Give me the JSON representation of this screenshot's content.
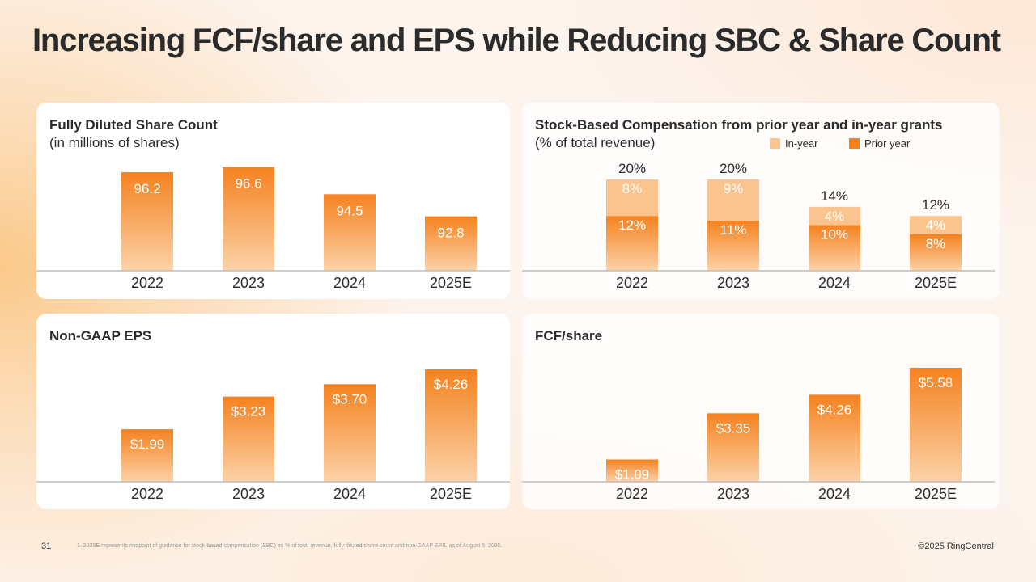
{
  "slide": {
    "title": "Increasing FCF/share and EPS while Reducing SBC & Share Count",
    "page_number": "31",
    "footnote": "1.   2025E represents midpoint of guidance for stock-based compensation (SBC) as % of total revenue, fully diluted share count and non-GAAP EPS, as of August 5, 2025.",
    "copyright": "©2025 RingCentral"
  },
  "colors": {
    "bar_top": "#f5821f",
    "bar_bottom": "#fcd2a8",
    "light_segment": "#fbc48f",
    "axis": "#bdbdbd",
    "text": "#2b2b2b"
  },
  "chart_data": [
    {
      "id": "share-count",
      "type": "bar",
      "title": "Fully Diluted Share Count",
      "subtitle": "(in millions of shares)",
      "categories": [
        "2022",
        "2023",
        "2024",
        "2025E"
      ],
      "values": [
        96.2,
        96.6,
        94.5,
        92.8
      ],
      "labels": [
        "96.2",
        "96.6",
        "94.5",
        "92.8"
      ],
      "ylim": [
        88.6,
        97.2
      ]
    },
    {
      "id": "sbc",
      "type": "bar",
      "stacked": true,
      "title": "Stock-Based Compensation from prior year and in-year grants",
      "subtitle": "(% of total revenue)",
      "categories": [
        "2022",
        "2023",
        "2024",
        "2025E"
      ],
      "series": [
        {
          "name": "Prior year",
          "values": [
            12,
            11,
            10,
            8
          ],
          "labels": [
            "12%",
            "11%",
            "10%",
            "8%"
          ]
        },
        {
          "name": "In-year",
          "values": [
            8,
            9,
            4,
            4
          ],
          "labels": [
            "8%",
            "9%",
            "4%",
            "4%"
          ]
        }
      ],
      "totals": [
        "20%",
        "20%",
        "14%",
        "12%"
      ],
      "legend": [
        "In-year",
        "Prior year"
      ],
      "ylim": [
        0,
        20
      ]
    },
    {
      "id": "eps",
      "type": "bar",
      "title": "Non-GAAP EPS",
      "subtitle": "",
      "categories": [
        "2022",
        "2023",
        "2024",
        "2025E"
      ],
      "values": [
        1.99,
        3.23,
        3.7,
        4.26
      ],
      "labels": [
        "$1.99",
        "$3.23",
        "$3.70",
        "$4.26"
      ],
      "ylim": [
        0,
        4.26
      ]
    },
    {
      "id": "fcf",
      "type": "bar",
      "title": "FCF/share",
      "subtitle": "",
      "categories": [
        "2022",
        "2023",
        "2024",
        "2025E"
      ],
      "values": [
        1.09,
        3.35,
        4.26,
        5.58
      ],
      "labels": [
        "$1.09",
        "$3.35",
        "$4.26",
        "$5.58"
      ],
      "ylim": [
        0,
        5.58
      ]
    }
  ]
}
